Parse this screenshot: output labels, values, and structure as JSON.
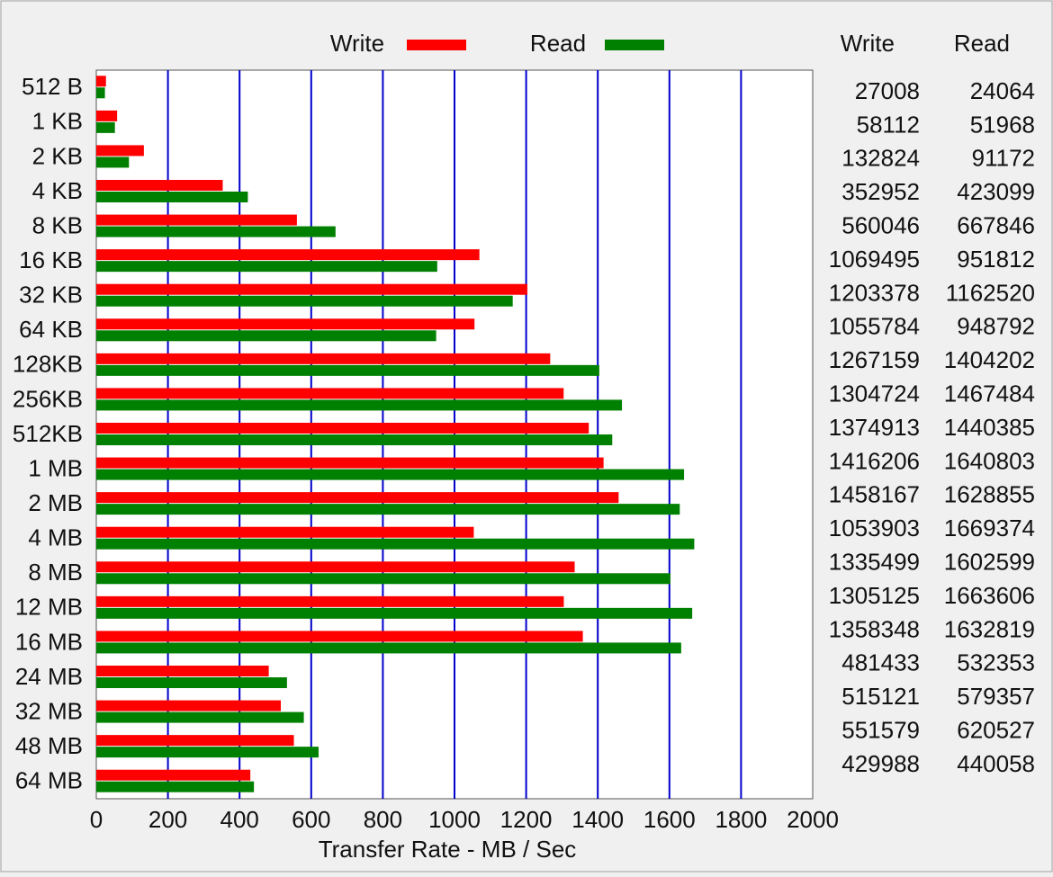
{
  "chart_data": {
    "type": "bar",
    "orientation": "horizontal",
    "x_axis_label": "Transfer Rate - MB / Sec",
    "categories": [
      "512 B",
      "1 KB",
      "2 KB",
      "4 KB",
      "8 KB",
      "16 KB",
      "32 KB",
      "64 KB",
      "128KB",
      "256KB",
      "512KB",
      "1 MB",
      "2 MB",
      "4 MB",
      "8 MB",
      "12 MB",
      "16 MB",
      "24 MB",
      "32 MB",
      "48 MB",
      "64 MB"
    ],
    "series": [
      {
        "name": "Write",
        "color": "#ff0000",
        "values": [
          27.008,
          58.112,
          132.824,
          352.952,
          560.046,
          1069.495,
          1203.378,
          1055.784,
          1267.159,
          1304.724,
          1374.913,
          1416.206,
          1458.167,
          1053.903,
          1335.499,
          1305.125,
          1358.348,
          481.433,
          515.121,
          551.579,
          429.988
        ],
        "value_labels": [
          "27008",
          "58112",
          "132824",
          "352952",
          "560046",
          "1069495",
          "1203378",
          "1055784",
          "1267159",
          "1304724",
          "1374913",
          "1416206",
          "1458167",
          "1053903",
          "1335499",
          "1305125",
          "1358348",
          "481433",
          "515121",
          "551579",
          "429988"
        ]
      },
      {
        "name": "Read",
        "color": "#008000",
        "values": [
          24.064,
          51.968,
          91.172,
          423.099,
          667.846,
          951.812,
          1162.52,
          948.792,
          1404.202,
          1467.484,
          1440.385,
          1640.803,
          1628.855,
          1669.374,
          1602.599,
          1663.606,
          1632.819,
          532.353,
          579.357,
          620.527,
          440.058
        ],
        "value_labels": [
          "24064",
          "51968",
          "91172",
          "423099",
          "667846",
          "951812",
          "1162520",
          "948792",
          "1404202",
          "1467484",
          "1440385",
          "1640803",
          "1628855",
          "1669374",
          "1602599",
          "1663606",
          "1632819",
          "532353",
          "579357",
          "620527",
          "440058"
        ]
      }
    ],
    "table_headers": [
      "Write",
      "Read"
    ],
    "xlim": [
      0,
      2000
    ],
    "xticks": [
      0,
      200,
      400,
      600,
      800,
      1000,
      1200,
      1400,
      1600,
      1800,
      2000
    ],
    "grid": true,
    "grid_color": "#0000cc"
  }
}
